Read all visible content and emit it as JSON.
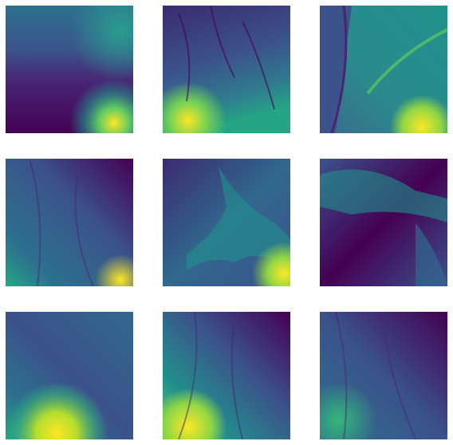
{
  "figure": {
    "colormap": "viridis",
    "rows": 3,
    "cols": 3,
    "background": "#ffffff",
    "palette": {
      "dark": "#440154",
      "deep": "#3b2a6f",
      "blue": "#31688e",
      "teal": "#21918c",
      "green": "#35b779",
      "lime": "#90d743",
      "yellow": "#fde725"
    },
    "tiles": [
      {
        "name": "tile-r1-c1"
      },
      {
        "name": "tile-r1-c2"
      },
      {
        "name": "tile-r1-c3"
      },
      {
        "name": "tile-r2-c1"
      },
      {
        "name": "tile-r2-c2"
      },
      {
        "name": "tile-r2-c3"
      },
      {
        "name": "tile-r3-c1"
      },
      {
        "name": "tile-r3-c2"
      },
      {
        "name": "tile-r3-c3"
      }
    ]
  }
}
